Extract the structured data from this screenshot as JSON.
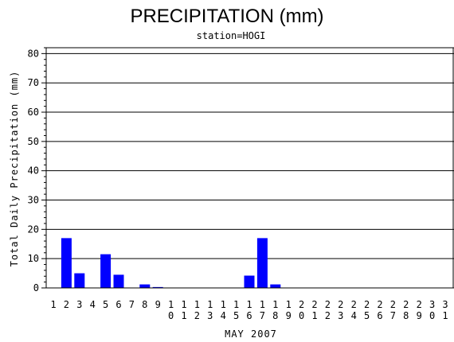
{
  "chart_data": {
    "type": "bar",
    "title": "PRECIPITATION (mm)",
    "subtitle": "station=HOGI",
    "xlabel": "MAY 2007",
    "ylabel": "Total Daily Precipitation (mm)",
    "ylim": [
      0,
      82
    ],
    "yticks": [
      0,
      10,
      20,
      30,
      40,
      50,
      60,
      70,
      80
    ],
    "grid": true,
    "bar_color": "#0000ff",
    "categories": [
      "1",
      "2",
      "3",
      "4",
      "5",
      "6",
      "7",
      "8",
      "9",
      "10",
      "11",
      "12",
      "13",
      "14",
      "15",
      "16",
      "17",
      "18",
      "19",
      "20",
      "21",
      "22",
      "23",
      "24",
      "25",
      "26",
      "27",
      "28",
      "29",
      "30",
      "31"
    ],
    "values": [
      0,
      17,
      5,
      0,
      11.5,
      4.5,
      0,
      1.2,
      0.3,
      0,
      0,
      0,
      0,
      0,
      0,
      4.2,
      17,
      1.2,
      0,
      0,
      0,
      0,
      0,
      0,
      0,
      0,
      0,
      0,
      0,
      0,
      0
    ]
  }
}
